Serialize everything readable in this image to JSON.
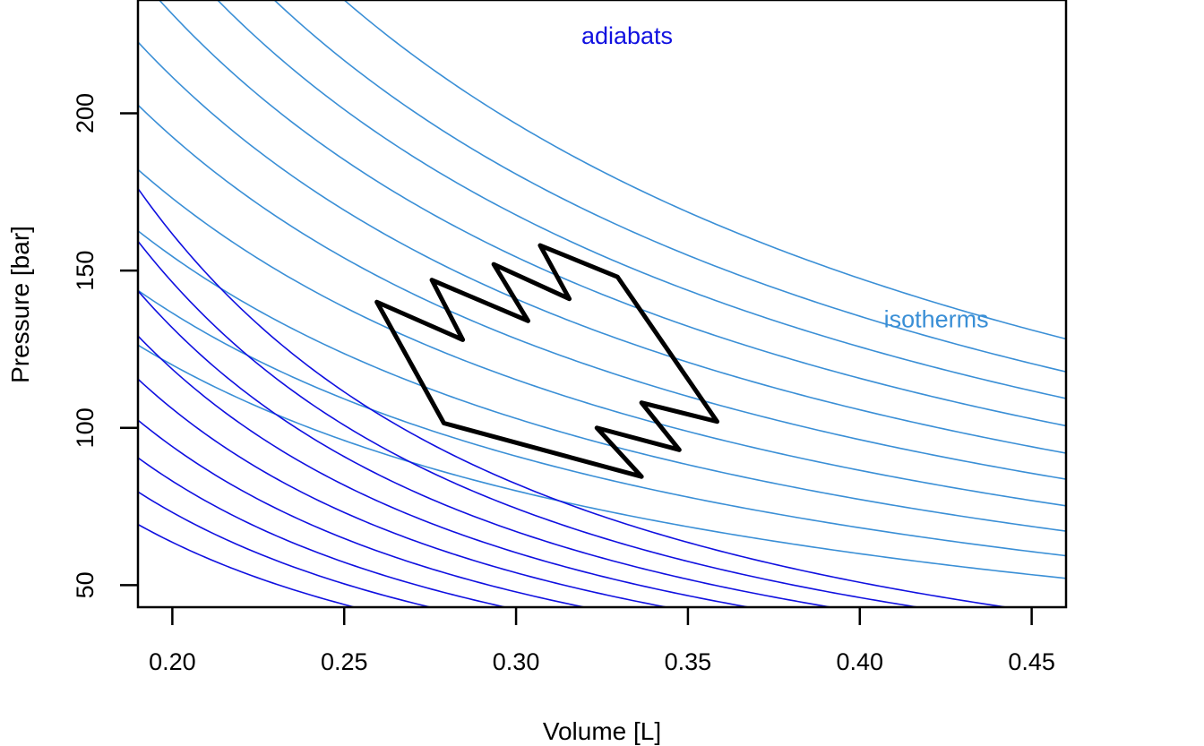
{
  "chart_data": {
    "type": "line",
    "xlabel": "Volume [L]",
    "ylabel": "Pressure [bar]",
    "xlim": [
      0.19,
      0.46
    ],
    "ylim": [
      43,
      236
    ],
    "x_ticks": [
      0.2,
      0.25,
      0.3,
      0.35,
      0.4,
      0.45
    ],
    "x_tick_labels": [
      "0.20",
      "0.25",
      "0.30",
      "0.35",
      "0.40",
      "0.45"
    ],
    "y_ticks": [
      50,
      100,
      150,
      200
    ],
    "y_tick_labels": [
      "50",
      "100",
      "150",
      "200"
    ],
    "grid": false,
    "colors": {
      "isotherm": "#3a8fd6",
      "adiabat": "#1010e0",
      "cycle": "#000000",
      "axis": "#000000"
    },
    "annotations": [
      {
        "text": "adiabats",
        "x": 0.319,
        "y": 222,
        "color": "#1010e0"
      },
      {
        "text": "isotherms",
        "x": 0.407,
        "y": 132,
        "color": "#3a8fd6"
      }
    ],
    "isotherms": {
      "description_constant": "p * V",
      "pV_values": [
        24,
        27.3,
        30.9,
        34.6,
        38.5,
        42.3,
        46.3,
        50.3,
        54.2,
        59
      ]
    },
    "adiabats": {
      "description_constant": "p * V^gamma",
      "gamma": 1.667,
      "pV_gamma_values": [
        4.35,
        5.0,
        5.68,
        6.43,
        7.25,
        8.11,
        9.01,
        10.0,
        11.05
      ]
    },
    "cycle": {
      "points": [
        {
          "V": 0.2595,
          "p": 140
        },
        {
          "V": 0.2845,
          "p": 128
        },
        {
          "V": 0.2755,
          "p": 147
        },
        {
          "V": 0.3035,
          "p": 134
        },
        {
          "V": 0.2935,
          "p": 152
        },
        {
          "V": 0.3155,
          "p": 141
        },
        {
          "V": 0.307,
          "p": 158
        },
        {
          "V": 0.3295,
          "p": 148
        },
        {
          "V": 0.3585,
          "p": 102
        },
        {
          "V": 0.3365,
          "p": 108
        },
        {
          "V": 0.3475,
          "p": 93
        },
        {
          "V": 0.3235,
          "p": 100
        },
        {
          "V": 0.3365,
          "p": 84.5
        },
        {
          "V": 0.279,
          "p": 101.5
        },
        {
          "V": 0.2595,
          "p": 140
        }
      ]
    }
  }
}
